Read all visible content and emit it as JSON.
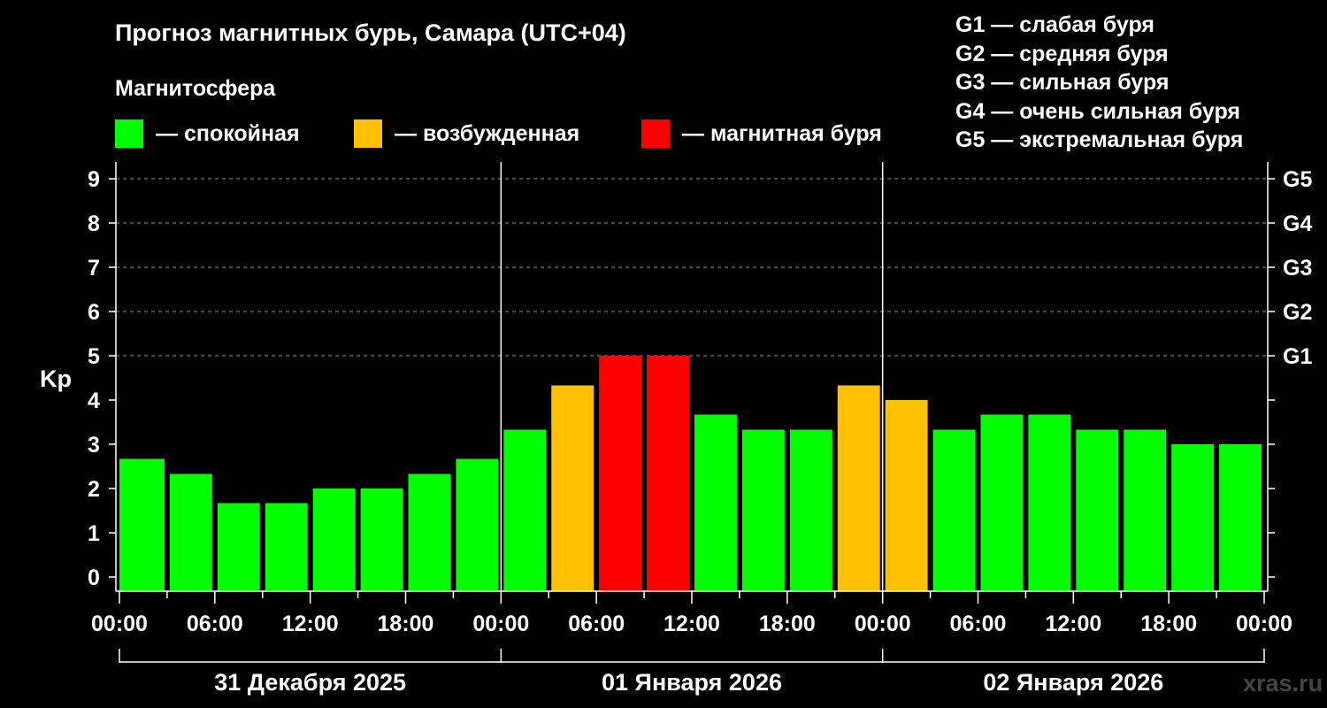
{
  "title": "Прогноз магнитных бурь, Самара (UTC+04)",
  "subtitle": "Магнитосфера",
  "legend": [
    {
      "label": "— спокойная",
      "color": "#00ff00"
    },
    {
      "label": "— возбужденная",
      "color": "#ffc000"
    },
    {
      "label": "— магнитная буря",
      "color": "#ff0000"
    }
  ],
  "g_legend": [
    "G1 — слабая буря",
    "G2 — средняя буря",
    "G3 — сильная буря",
    "G4 — очень сильная буря",
    "G5 — экстремальная буря"
  ],
  "watermark": "xras.ru",
  "chart_data": {
    "type": "bar",
    "ylabel": "Kp",
    "ylim": [
      0,
      9
    ],
    "y_ticks": [
      "0",
      "1",
      "2",
      "3",
      "4",
      "5",
      "6",
      "7",
      "8",
      "9"
    ],
    "right_ticks": [
      {
        "value": 5,
        "label": "G1"
      },
      {
        "value": 6,
        "label": "G2"
      },
      {
        "value": 7,
        "label": "G3"
      },
      {
        "value": 8,
        "label": "G4"
      },
      {
        "value": 9,
        "label": "G5"
      }
    ],
    "x_tick_labels": [
      "00:00",
      "06:00",
      "12:00",
      "18:00",
      "00:00",
      "06:00",
      "12:00",
      "18:00",
      "00:00",
      "06:00",
      "12:00",
      "18:00",
      "00:00"
    ],
    "days": [
      "31 Декабря 2025",
      "01 Января 2026",
      "02 Января 2026"
    ],
    "bar_hours": [
      0,
      3,
      6,
      9,
      12,
      15,
      18,
      21,
      24,
      27,
      30,
      33,
      36,
      39,
      42,
      45,
      48,
      51,
      54,
      57,
      60,
      63,
      66,
      69
    ],
    "values": [
      2.67,
      2.33,
      1.67,
      1.67,
      2.0,
      2.0,
      2.33,
      2.67,
      3.33,
      4.33,
      5.0,
      5.0,
      3.67,
      3.33,
      3.33,
      4.33,
      4.0,
      3.33,
      3.67,
      3.67,
      3.33,
      3.33,
      3.0,
      3.0
    ],
    "level": [
      "quiet",
      "quiet",
      "quiet",
      "quiet",
      "quiet",
      "quiet",
      "quiet",
      "quiet",
      "quiet",
      "active",
      "storm",
      "storm",
      "quiet",
      "quiet",
      "quiet",
      "active",
      "active",
      "quiet",
      "quiet",
      "quiet",
      "quiet",
      "quiet",
      "quiet",
      "quiet"
    ],
    "colors": {
      "quiet": "#00ff00",
      "active": "#ffc000",
      "storm": "#ff0000"
    },
    "grid": true
  }
}
